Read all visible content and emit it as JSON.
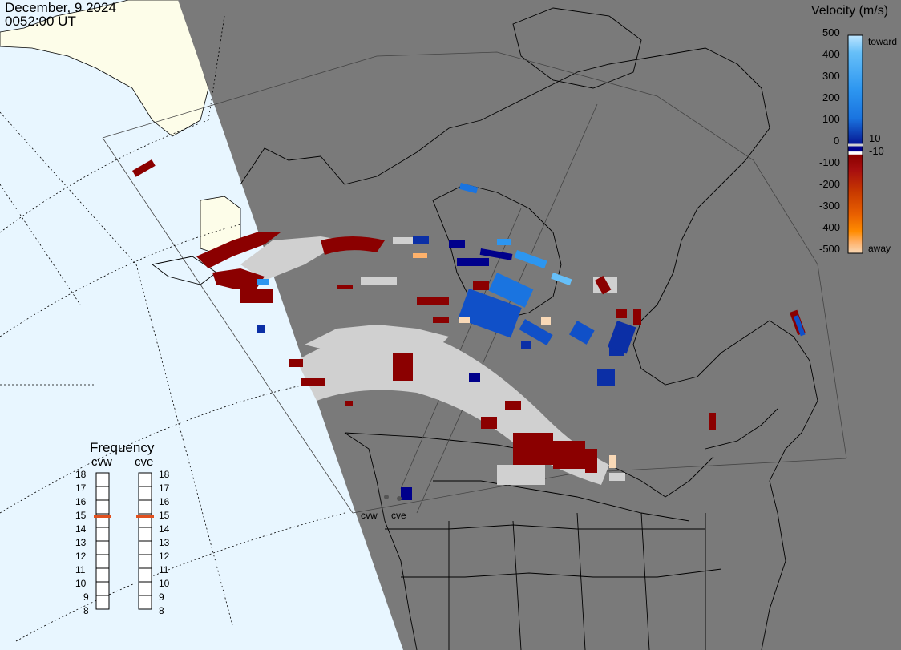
{
  "header": {
    "date": "December, 9 2024",
    "time": "0052:00 UT"
  },
  "colorbar": {
    "title": "Velocity (m/s)",
    "tick_labels": [
      "500",
      "400",
      "300",
      "200",
      "100",
      "10",
      "0",
      "-10",
      "-100",
      "-200",
      "-300",
      "-400",
      "-500"
    ],
    "toward_label": "toward",
    "away_label": "away",
    "colors": [
      "#f9d9b7",
      "#ffb26b",
      "#ff8c00",
      "#e85f00",
      "#c83a00",
      "#a80f0f",
      "#8b0000",
      "#ffffff",
      "#00008b",
      "#0b2fa6",
      "#1050c8",
      "#1a74e0",
      "#2d96f0",
      "#66bff8",
      "#bfe6ff"
    ]
  },
  "frequency_panel": {
    "title": "Frequency",
    "radars": [
      {
        "name": "cvw",
        "frequency_mhz": 15
      },
      {
        "name": "cve",
        "frequency_mhz": 15
      }
    ],
    "scale": [
      "18",
      "17",
      "16",
      "15",
      "14",
      "13",
      "12",
      "11",
      "10",
      "9",
      "8"
    ],
    "marker_color": "#e0501e"
  },
  "map": {
    "radar_site_labels": [
      "cvw",
      "cve"
    ],
    "colors": {
      "night": "#7a7a7a",
      "ocean_day": "#e8f6ff",
      "land_day": "#fdfde9",
      "ground_scatter": "#d0d0d0",
      "away_strong": "#8b0000",
      "toward_dark": "#00008b",
      "toward_mid": "#1050c8",
      "toward_light": "#2d96f0"
    }
  }
}
